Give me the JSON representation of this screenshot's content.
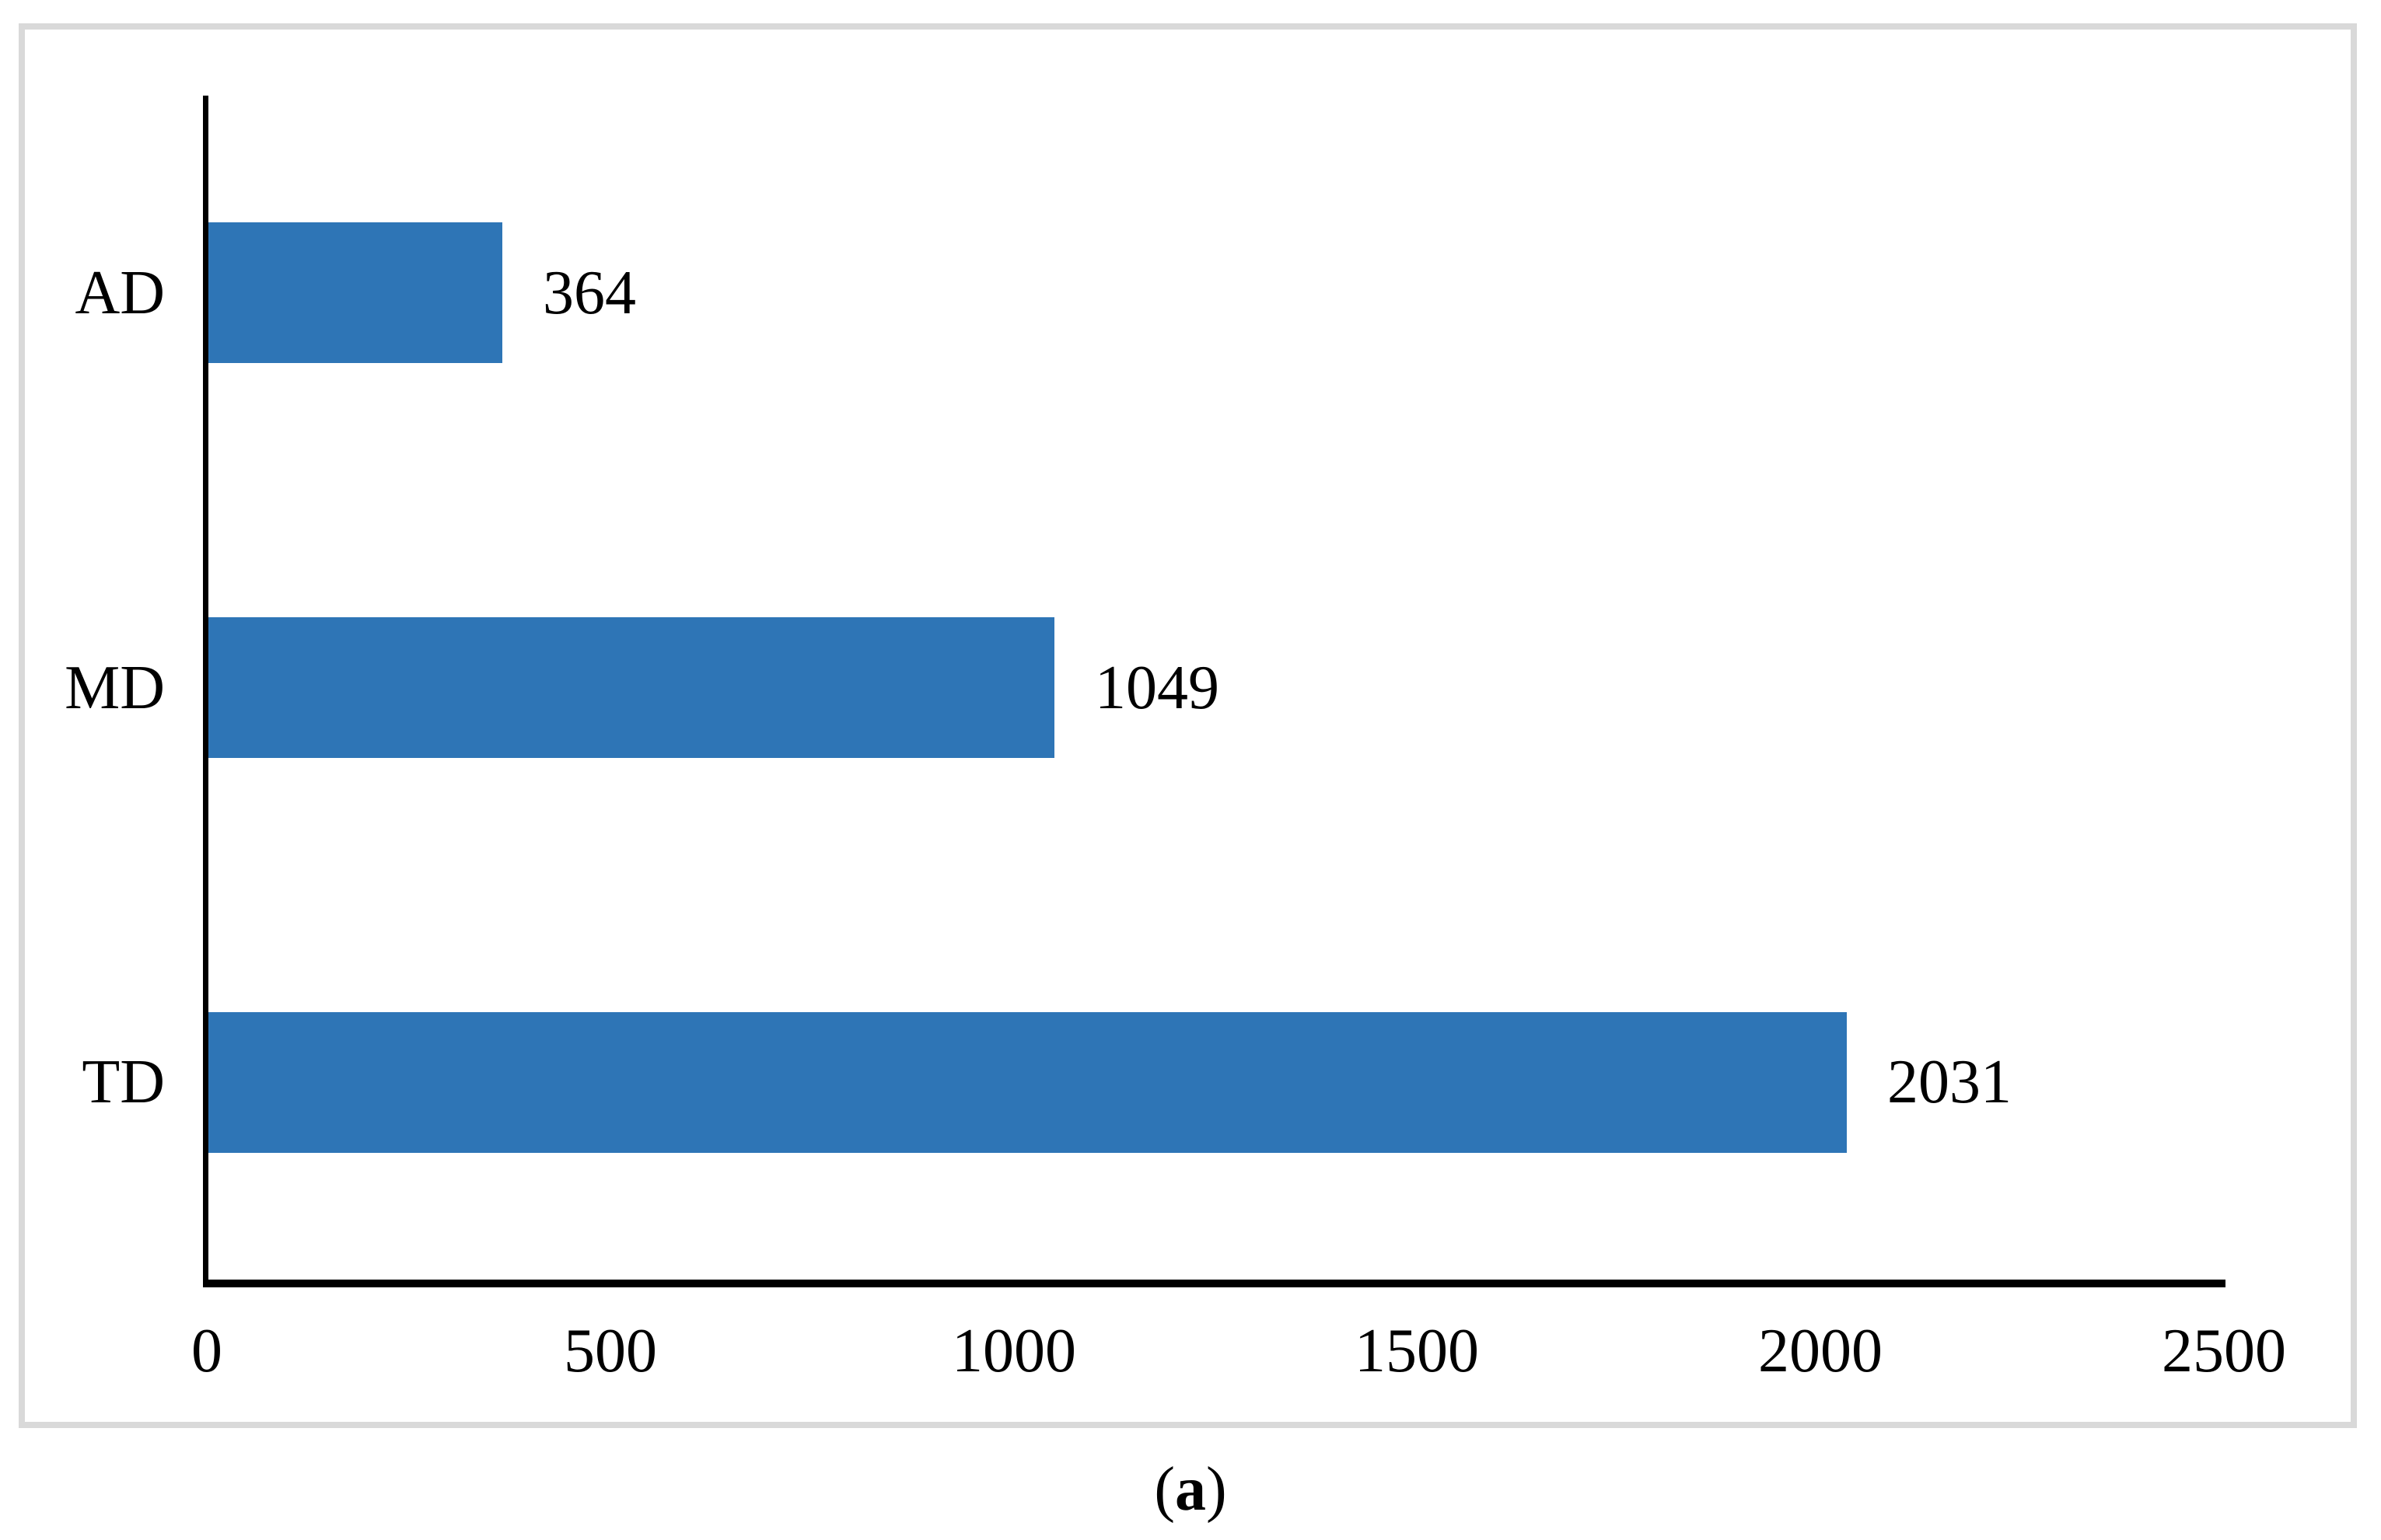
{
  "chart_data": {
    "type": "bar",
    "orientation": "horizontal",
    "title": "",
    "xlabel": "",
    "ylabel": "",
    "categories": [
      "AD",
      "MD",
      "TD"
    ],
    "values": [
      364,
      1049,
      2031
    ],
    "data_labels": [
      "364",
      "1049",
      "2031"
    ],
    "x_ticks": [
      "0",
      "500",
      "1000",
      "1500",
      "2000",
      "2500"
    ],
    "xlim": [
      0,
      2500
    ],
    "grid": false,
    "legend": "none",
    "bar_color": "#2E75B6",
    "axis_color": "#000000",
    "frame_border_color": "#D9D9D9"
  },
  "caption": {
    "open": "(",
    "letter": "a",
    "close": ")"
  }
}
